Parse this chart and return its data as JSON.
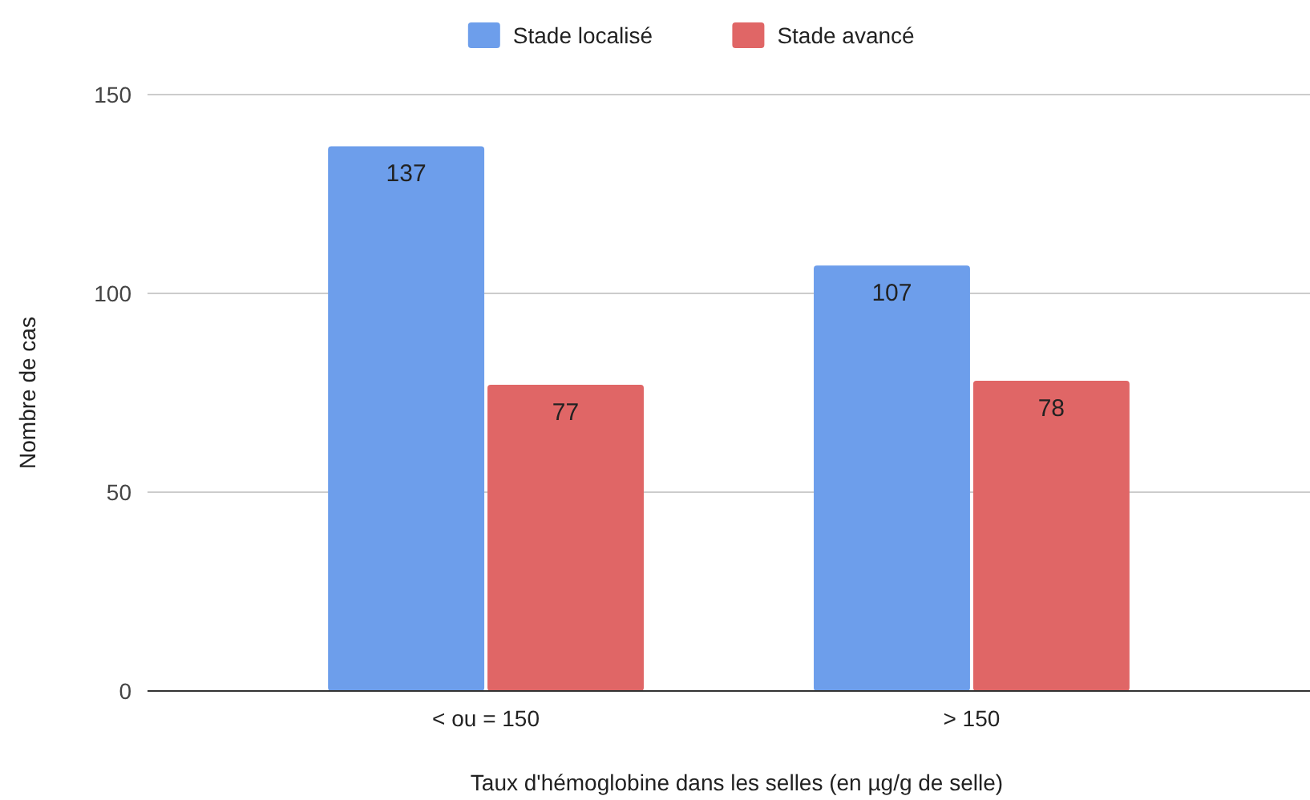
{
  "chart_data": {
    "type": "bar",
    "xlabel": "Taux d'hémoglobine dans les selles (en µg/g de selle)",
    "ylabel": "Nombre de cas",
    "categories": [
      "< ou = 150",
      "> 150"
    ],
    "series": [
      {
        "name": "Stade localisé",
        "color": "#6d9eeb",
        "values": [
          137,
          107
        ]
      },
      {
        "name": "Stade avancé",
        "color": "#e06666",
        "values": [
          77,
          78
        ]
      }
    ],
    "ylim": [
      0,
      150
    ],
    "yticks": [
      0,
      50,
      100,
      150
    ],
    "grid": "y",
    "legend": "top",
    "data_labels": true
  }
}
